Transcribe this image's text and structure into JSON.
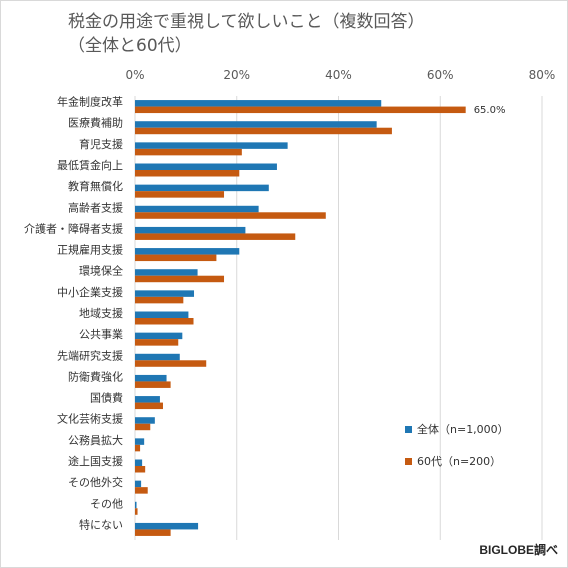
{
  "title": {
    "line1": "税金の用途で重視して欲しいこと（複数回答）",
    "line2": "（全体と60代）"
  },
  "credit": "BIGLOBE調べ",
  "colors": {
    "series1": "#1f77b4",
    "series2": "#c55a11",
    "axis_text": "#595959",
    "grid": "#d9d9d9"
  },
  "chart_data": {
    "type": "bar",
    "orientation": "horizontal",
    "xlim": [
      0,
      80
    ],
    "x_ticks": [
      "0%",
      "20%",
      "40%",
      "60%",
      "80%"
    ],
    "x_tick_values": [
      0,
      20,
      40,
      60,
      80
    ],
    "grid": true,
    "legend_position": "right",
    "categories": [
      "年金制度改革",
      "医療費補助",
      "育児支援",
      "最低賃金向上",
      "教育無償化",
      "高齢者支援",
      "介護者・障碍者支援",
      "正規雇用支援",
      "環境保全",
      "中小企業支援",
      "地域支援",
      "公共事業",
      "先端研究支援",
      "防衛費強化",
      "国債費",
      "文化芸術支援",
      "公務員拡大",
      "途上国支援",
      "その他外交",
      "その他",
      "特にない"
    ],
    "series": [
      {
        "name": "全体（n=1,000）",
        "values": [
          48.4,
          47.5,
          30.0,
          27.9,
          26.3,
          24.3,
          21.7,
          20.5,
          12.3,
          11.6,
          10.5,
          9.3,
          8.8,
          6.2,
          4.9,
          3.9,
          1.8,
          1.4,
          1.2,
          0.3,
          12.4
        ]
      },
      {
        "name": "60代（n=200）",
        "values": [
          65.0,
          50.5,
          21.0,
          20.5,
          17.5,
          37.5,
          31.5,
          16.0,
          17.5,
          9.5,
          11.5,
          8.5,
          14.0,
          7.0,
          5.5,
          3.0,
          1.0,
          2.0,
          2.5,
          0.5,
          7.0
        ]
      }
    ],
    "data_labels": [
      {
        "category": "年金制度改革",
        "series": "60代（n=200）",
        "text": "65.0%"
      }
    ]
  }
}
